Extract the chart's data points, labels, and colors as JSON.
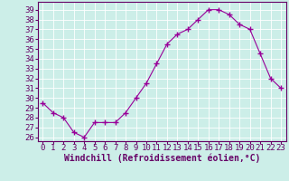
{
  "hours": [
    0,
    1,
    2,
    3,
    4,
    5,
    6,
    7,
    8,
    9,
    10,
    11,
    12,
    13,
    14,
    15,
    16,
    17,
    18,
    19,
    20,
    21,
    22,
    23
  ],
  "windchill": [
    29.5,
    28.5,
    28.0,
    26.5,
    26.0,
    27.5,
    27.5,
    27.5,
    28.5,
    30.0,
    31.5,
    33.5,
    35.5,
    36.5,
    37.0,
    38.0,
    39.0,
    39.0,
    38.5,
    37.5,
    37.0,
    34.5,
    32.0,
    31.0
  ],
  "line_color": "#990099",
  "marker": "+",
  "marker_size": 4,
  "bg_color": "#cceee8",
  "grid_color": "#ffffff",
  "axis_color": "#660066",
  "ylabel_ticks": [
    26,
    27,
    28,
    29,
    30,
    31,
    32,
    33,
    34,
    35,
    36,
    37,
    38,
    39
  ],
  "ylim": [
    25.6,
    39.8
  ],
  "xlim": [
    -0.5,
    23.5
  ],
  "xlabel": "Windchill (Refroidissement éolien,°C)",
  "tick_fontsize": 6.5,
  "label_fontsize": 7,
  "x_tick_labels": [
    "0",
    "1",
    "2",
    "3",
    "4",
    "5",
    "6",
    "7",
    "8",
    "9",
    "10",
    "11",
    "12",
    "13",
    "14",
    "15",
    "16",
    "17",
    "18",
    "19",
    "20",
    "21",
    "22",
    "23"
  ]
}
